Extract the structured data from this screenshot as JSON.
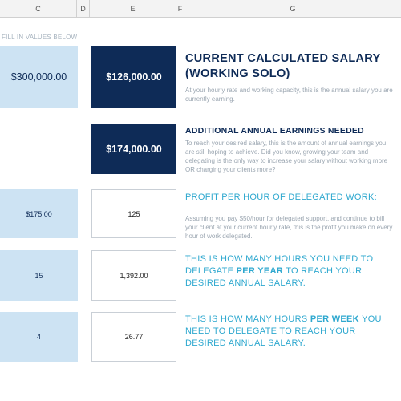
{
  "columns": {
    "c": "C",
    "d": "D",
    "e": "E",
    "f": "F",
    "g": "G"
  },
  "note": "FILL IN VALUES BELOW",
  "rows": [
    {
      "input_value": "$300,000.00",
      "result_value": "$126,000.00",
      "title": "CURRENT CALCULATED SALARY (WORKING SOLO)",
      "description": "At your hourly rate and working capacity, this is the annual salary you are currently earning."
    },
    {
      "result_value": "$174,000.00",
      "title": "ADDITIONAL ANNUAL EARNINGS NEEDED",
      "description": "To reach your desired salary, this is the amount of annual earnings you are still hoping to achieve. Did you know, growing your team and delegating is the only way to increase your salary without working more OR charging your clients more?"
    },
    {
      "input_value": "$175.00",
      "result_value": "125",
      "title": "PROFIT PER HOUR OF DELEGATED WORK:",
      "description": "Assuming you pay $50/hour for delegated support, and continue to bill your client at your current hourly rate, this is the profit you make on every hour of work delegated."
    },
    {
      "input_value": "15",
      "result_value": "1,392.00",
      "title_pre": "THIS IS HOW MANY HOURS YOU NEED TO DELEGATE ",
      "title_bold": "PER YEAR",
      "title_post": " TO REACH YOUR DESIRED ANNUAL SALARY."
    },
    {
      "input_value": "4",
      "result_value": "26.77",
      "title_pre": "THIS IS HOW MANY HOURS ",
      "title_bold": "PER WEEK",
      "title_post": " YOU NEED TO DELEGATE TO REACH YOUR DESIRED ANNUAL SALARY."
    }
  ],
  "colors": {
    "dark_navy": "#0e2b57",
    "light_blue": "#cde3f3",
    "teal": "#2ea8cf",
    "muted_text": "#9ba6b1"
  }
}
